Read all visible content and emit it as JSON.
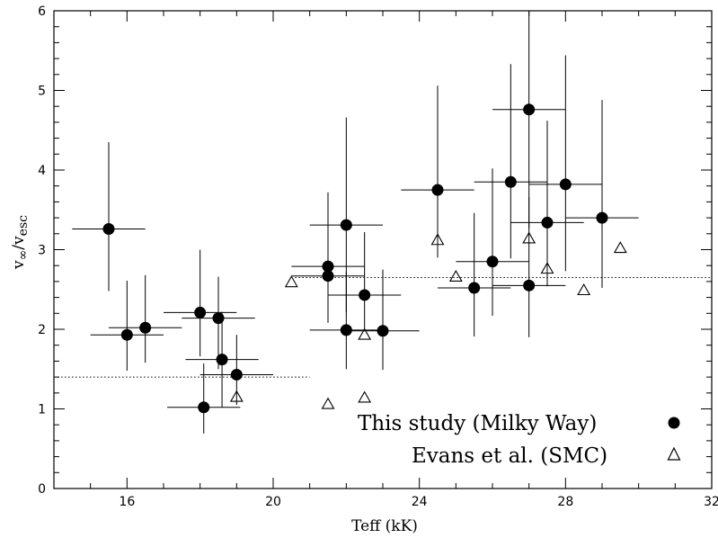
{
  "chart_data": {
    "type": "scatter",
    "title": "",
    "xlabel": "Teff (kK)",
    "ylabel_parts": [
      "v",
      "∞",
      "/v",
      "esc"
    ],
    "xlim": [
      14,
      32
    ],
    "ylim": [
      0,
      6
    ],
    "xticks_major": [
      16,
      20,
      24,
      28,
      32
    ],
    "xticks_minor_step": 1,
    "yticks_major": [
      0,
      1,
      2,
      3,
      4,
      5,
      6
    ],
    "yticks_minor_step": 0.2,
    "grid": false,
    "legend_position": "bottom-right",
    "reference_lines": [
      {
        "style": "dotted",
        "x": [
          14.1,
          21.0
        ],
        "y": 1.4
      },
      {
        "style": "dotted",
        "x": [
          20.6,
          32.0
        ],
        "y": 2.65
      }
    ],
    "series": [
      {
        "name": "This study (Milky Way)",
        "marker": "filled-circle",
        "points": [
          {
            "x": 15.5,
            "y": 3.26,
            "xerr": [
              1.0,
              1.0
            ],
            "yerr": [
              0.78,
              1.09
            ]
          },
          {
            "x": 16.0,
            "y": 1.93,
            "xerr": [
              1.0,
              1.0
            ],
            "yerr": [
              0.45,
              0.68
            ]
          },
          {
            "x": 16.5,
            "y": 2.02,
            "xerr": [
              1.0,
              1.0
            ],
            "yerr": [
              0.44,
              0.66
            ]
          },
          {
            "x": 18.0,
            "y": 2.21,
            "xerr": [
              1.0,
              1.0
            ],
            "yerr": [
              0.55,
              0.79
            ]
          },
          {
            "x": 18.5,
            "y": 2.14,
            "xerr": [
              1.0,
              1.0
            ],
            "yerr": [
              0.64,
              0.52
            ]
          },
          {
            "x": 18.6,
            "y": 1.62,
            "xerr": [
              1.0,
              1.0
            ],
            "yerr": [
              0.6,
              0.6
            ]
          },
          {
            "x": 18.1,
            "y": 1.02,
            "xerr": [
              1.0,
              1.0
            ],
            "yerr": [
              0.33,
              0.55
            ]
          },
          {
            "x": 19.0,
            "y": 1.43,
            "xerr": [
              1.0,
              1.0
            ],
            "yerr": [
              0.38,
              0.5
            ]
          },
          {
            "x": 21.5,
            "y": 2.79,
            "xerr": [
              1.0,
              1.0
            ],
            "yerr": [
              0.62,
              0.92
            ]
          },
          {
            "x": 21.5,
            "y": 2.67,
            "xerr": [
              1.0,
              1.0
            ],
            "yerr": [
              0.59,
              1.05
            ]
          },
          {
            "x": 22.0,
            "y": 3.31,
            "xerr": [
              1.0,
              1.0
            ],
            "yerr": [
              1.1,
              1.35
            ]
          },
          {
            "x": 22.0,
            "y": 1.99,
            "xerr": [
              1.0,
              1.0
            ],
            "yerr": [
              0.49,
              0.73
            ]
          },
          {
            "x": 22.5,
            "y": 2.43,
            "xerr": [
              1.0,
              1.0
            ],
            "yerr": [
              0.44,
              0.79
            ]
          },
          {
            "x": 23.0,
            "y": 1.98,
            "xerr": [
              1.0,
              1.0
            ],
            "yerr": [
              0.49,
              0.77
            ]
          },
          {
            "x": 24.5,
            "y": 3.75,
            "xerr": [
              1.0,
              1.0
            ],
            "yerr": [
              0.85,
              1.31
            ]
          },
          {
            "x": 25.5,
            "y": 2.52,
            "xerr": [
              1.0,
              1.0
            ],
            "yerr": [
              0.61,
              0.94
            ]
          },
          {
            "x": 26.0,
            "y": 2.85,
            "xerr": [
              1.0,
              1.0
            ],
            "yerr": [
              0.68,
              1.17
            ]
          },
          {
            "x": 26.5,
            "y": 3.85,
            "xerr": [
              1.0,
              1.0
            ],
            "yerr": [
              0.96,
              1.48
            ]
          },
          {
            "x": 27.0,
            "y": 4.76,
            "xerr": [
              1.0,
              1.0
            ],
            "yerr": [
              1.49,
              1.6
            ]
          },
          {
            "x": 27.0,
            "y": 2.55,
            "xerr": [
              1.0,
              1.0
            ],
            "yerr": [
              0.65,
              1.11
            ]
          },
          {
            "x": 27.5,
            "y": 3.34,
            "xerr": [
              1.0,
              1.0
            ],
            "yerr": [
              0.8,
              1.28
            ]
          },
          {
            "x": 28.0,
            "y": 3.82,
            "xerr": [
              1.0,
              1.0
            ],
            "yerr": [
              1.09,
              1.62
            ]
          },
          {
            "x": 29.0,
            "y": 3.4,
            "xerr": [
              1.0,
              1.0
            ],
            "yerr": [
              0.88,
              1.48
            ]
          }
        ]
      },
      {
        "name": "Evans et al. (SMC)",
        "marker": "open-triangle",
        "points": [
          {
            "x": 19.0,
            "y": 1.15
          },
          {
            "x": 20.5,
            "y": 2.59
          },
          {
            "x": 21.5,
            "y": 1.06
          },
          {
            "x": 22.5,
            "y": 1.93
          },
          {
            "x": 22.5,
            "y": 1.14
          },
          {
            "x": 24.5,
            "y": 3.12
          },
          {
            "x": 25.0,
            "y": 2.66
          },
          {
            "x": 27.0,
            "y": 3.14
          },
          {
            "x": 27.5,
            "y": 2.76
          },
          {
            "x": 28.5,
            "y": 2.49
          },
          {
            "x": 29.5,
            "y": 3.02
          }
        ]
      }
    ]
  }
}
